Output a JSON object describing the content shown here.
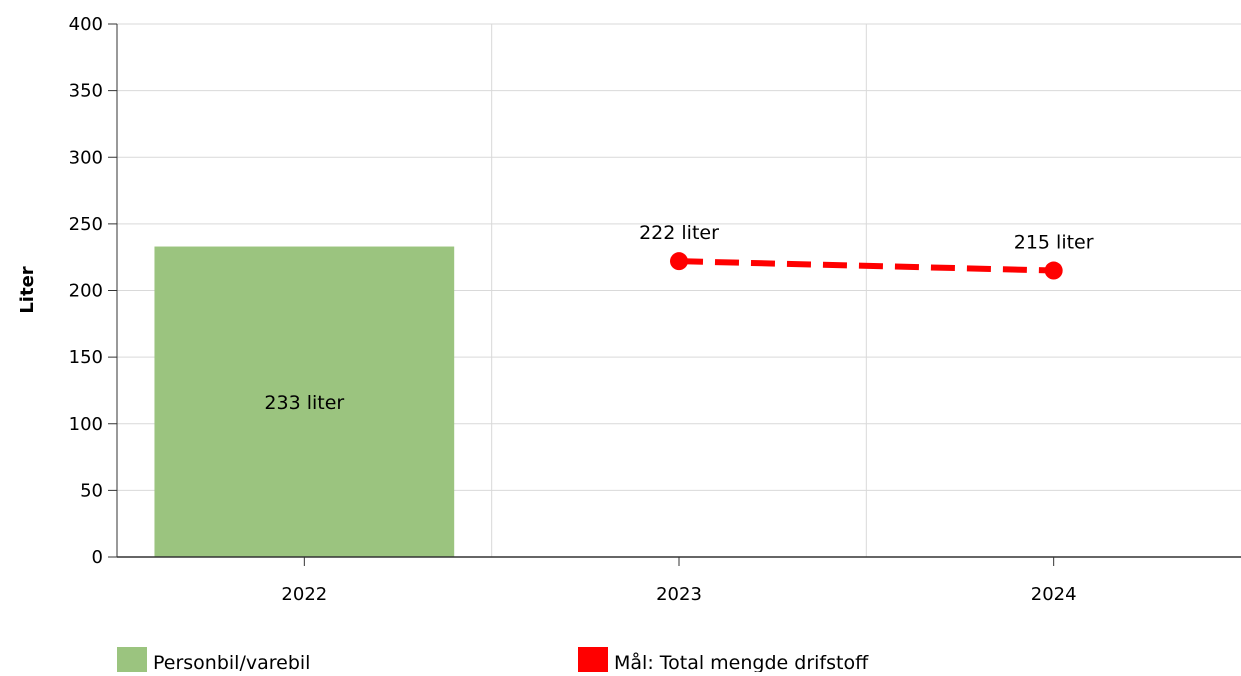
{
  "chart_data": {
    "type": "bar",
    "categories": [
      "2022",
      "2023",
      "2024"
    ],
    "ylabel": "Liter",
    "ylim": [
      0,
      400
    ],
    "yticks": [
      0,
      50,
      100,
      150,
      200,
      250,
      300,
      350,
      400
    ],
    "grid": true,
    "legend_position": "bottom",
    "series": [
      {
        "name": "Personbil/varebil",
        "type": "bar",
        "color": "#9bc47f",
        "values": [
          233,
          null,
          null
        ],
        "labels": [
          "233 liter",
          "",
          ""
        ]
      },
      {
        "name": "Mål: Total mengde drifstoff",
        "type": "line",
        "line_style": "dashed",
        "color": "#ff0000",
        "values": [
          null,
          222,
          215
        ],
        "labels": [
          "",
          "222 liter",
          "215 liter"
        ]
      }
    ]
  }
}
